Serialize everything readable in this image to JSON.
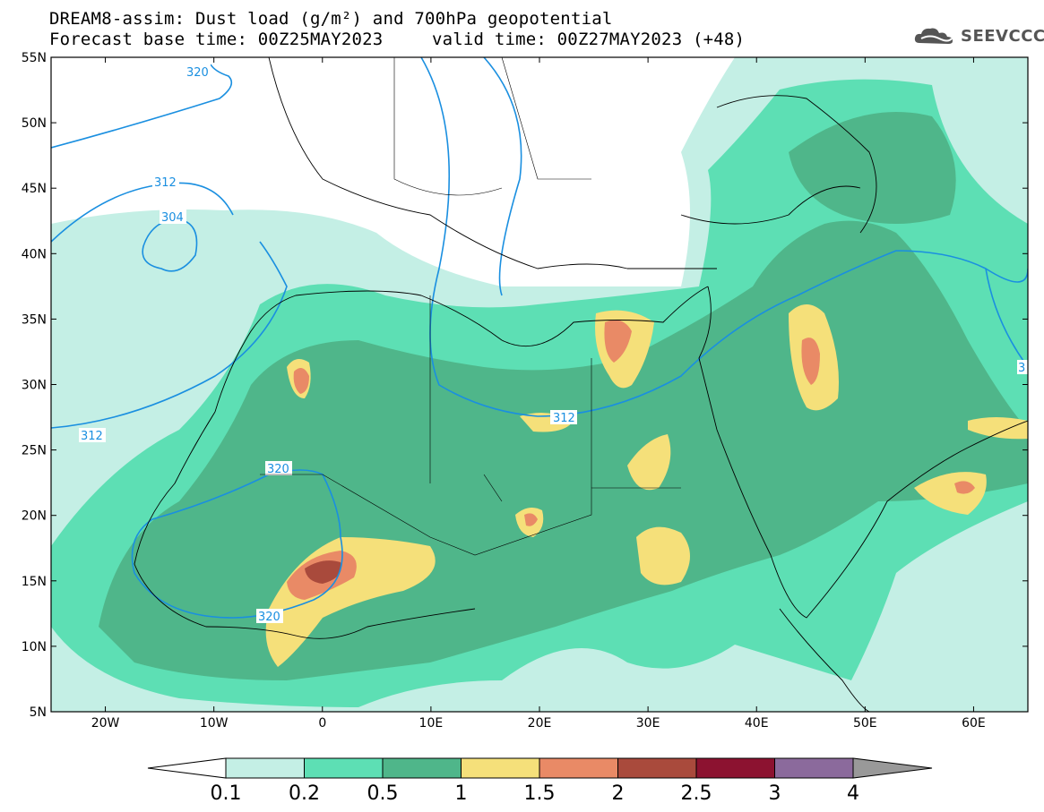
{
  "header": {
    "line1": "DREAM8-assim: Dust load (g/m²) and 700hPa geopotential",
    "line2": "Forecast base time: 00Z25MAY2023",
    "line3": "valid time: 00Z27MAY2023 (+48)"
  },
  "logo": {
    "text": "SEEVCCC",
    "icon": "cloud-logo-icon"
  },
  "map": {
    "lon_range": [
      -25,
      65
    ],
    "lat_range": [
      5,
      55
    ],
    "lat_labels": [
      "55N",
      "50N",
      "45N",
      "40N",
      "35N",
      "30N",
      "25N",
      "20N",
      "15N",
      "10N",
      "5N"
    ],
    "lon_labels": [
      "20W",
      "10W",
      "0",
      "10E",
      "20E",
      "30E",
      "40E",
      "50E",
      "60E"
    ],
    "geopotential_labels": [
      "320",
      "312",
      "304",
      "312",
      "320",
      "320",
      "312",
      "3"
    ]
  },
  "colorbar": {
    "labels": [
      "0.1",
      "0.2",
      "0.5",
      "1",
      "1.5",
      "2",
      "2.5",
      "3",
      "4"
    ],
    "colors": [
      "#c4efe5",
      "#5ddfb4",
      "#4fb68a",
      "#f5e07a",
      "#e98a66",
      "#a94a3c",
      "#8c1230",
      "#8b6a9c"
    ],
    "under_color": "#ffffff",
    "over_color": "#999999"
  }
}
